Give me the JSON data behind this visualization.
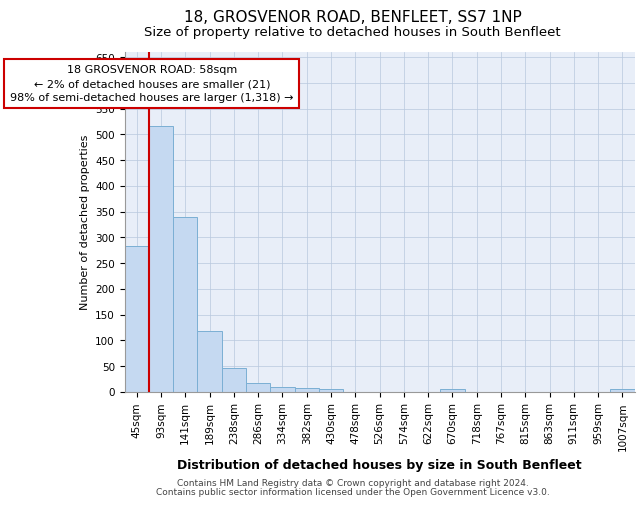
{
  "title1": "18, GROSVENOR ROAD, BENFLEET, SS7 1NP",
  "title2": "Size of property relative to detached houses in South Benfleet",
  "xlabel": "Distribution of detached houses by size in South Benfleet",
  "ylabel": "Number of detached properties",
  "categories": [
    "45sqm",
    "93sqm",
    "141sqm",
    "189sqm",
    "238sqm",
    "286sqm",
    "334sqm",
    "382sqm",
    "430sqm",
    "478sqm",
    "526sqm",
    "574sqm",
    "622sqm",
    "670sqm",
    "718sqm",
    "767sqm",
    "815sqm",
    "863sqm",
    "911sqm",
    "959sqm",
    "1007sqm"
  ],
  "values": [
    284,
    516,
    340,
    119,
    47,
    18,
    10,
    8,
    5,
    0,
    0,
    0,
    0,
    5,
    0,
    0,
    0,
    0,
    0,
    0,
    5
  ],
  "bar_color": "#c5d9f1",
  "bar_edge_color": "#7bafd4",
  "annotation_line1": "18 GROSVENOR ROAD: 58sqm",
  "annotation_line2": "← 2% of detached houses are smaller (21)",
  "annotation_line3": "98% of semi-detached houses are larger (1,318) →",
  "annotation_box_color": "#ffffff",
  "annotation_box_edge_color": "#cc0000",
  "vline_color": "#cc0000",
  "vline_x": 0.5,
  "ylim": [
    0,
    660
  ],
  "yticks": [
    0,
    50,
    100,
    150,
    200,
    250,
    300,
    350,
    400,
    450,
    500,
    550,
    600,
    650
  ],
  "plot_background": "#e8eef8",
  "footer1": "Contains HM Land Registry data © Crown copyright and database right 2024.",
  "footer2": "Contains public sector information licensed under the Open Government Licence v3.0.",
  "title1_fontsize": 11,
  "title2_fontsize": 9.5,
  "xlabel_fontsize": 9,
  "ylabel_fontsize": 8,
  "annotation_fontsize": 8,
  "tick_fontsize": 7.5,
  "footer_fontsize": 6.5
}
